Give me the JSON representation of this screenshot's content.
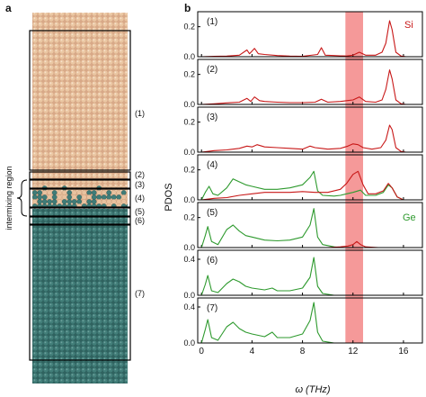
{
  "panel_a": {
    "letter": "a",
    "side_label": "intermixing region",
    "region_labels": [
      "(1)",
      "(2)",
      "(3)",
      "(4)",
      "(5)",
      "(6)",
      "(7)"
    ]
  },
  "panel_b": {
    "letter": "b",
    "series_label_si": "Si",
    "series_label_ge": "Ge"
  },
  "colors": {
    "si": "#c81818",
    "ge": "#2e9a2e",
    "highlight": "#f28080",
    "si_atoms": "#e8c29f",
    "ge_atoms": "#3f7c78"
  },
  "chart_data": {
    "type": "line",
    "xlabel": "ω (THz)",
    "ylabel": "PDOS",
    "xlim": [
      -0.3,
      17.5
    ],
    "x_ticks": [
      0,
      4,
      8,
      12,
      16
    ],
    "x_tick_labels": [
      "0",
      "4",
      "8",
      "12",
      "16"
    ],
    "highlight_band": [
      11.4,
      12.8
    ],
    "panels": [
      {
        "label": "(1)",
        "ylim": [
          0,
          0.3
        ],
        "y_ticks": [
          0.0,
          0.2
        ],
        "y_tick_labels": [
          "0.0",
          "0.2"
        ],
        "series": [
          {
            "key": "si",
            "name": "Si",
            "points": [
              [
                0,
                0
              ],
              [
                1,
                0.003
              ],
              [
                2,
                0.004
              ],
              [
                3,
                0.01
              ],
              [
                3.6,
                0.045
              ],
              [
                3.8,
                0.02
              ],
              [
                4.2,
                0.055
              ],
              [
                4.5,
                0.02
              ],
              [
                5,
                0.015
              ],
              [
                6,
                0.008
              ],
              [
                7,
                0.004
              ],
              [
                8,
                0.003
              ],
              [
                9.2,
                0.015
              ],
              [
                9.5,
                0.06
              ],
              [
                9.8,
                0.01
              ],
              [
                10.5,
                0.008
              ],
              [
                11,
                0.006
              ],
              [
                11.5,
                0.005
              ],
              [
                12,
                0.01
              ],
              [
                12.5,
                0.03
              ],
              [
                13,
                0.01
              ],
              [
                13.8,
                0.01
              ],
              [
                14.3,
                0.03
              ],
              [
                14.6,
                0.09
              ],
              [
                14.9,
                0.24
              ],
              [
                15.1,
                0.18
              ],
              [
                15.4,
                0.03
              ],
              [
                15.8,
                0.005
              ],
              [
                16.2,
                0
              ],
              [
                17.5,
                0
              ]
            ]
          }
        ]
      },
      {
        "label": "(2)",
        "ylim": [
          0,
          0.3
        ],
        "y_ticks": [
          0.0,
          0.2
        ],
        "y_tick_labels": [
          "0.0",
          "0.2"
        ],
        "series": [
          {
            "key": "si",
            "name": "Si",
            "points": [
              [
                0,
                0
              ],
              [
                1,
                0.004
              ],
              [
                2,
                0.01
              ],
              [
                3,
                0.015
              ],
              [
                3.6,
                0.04
              ],
              [
                3.9,
                0.02
              ],
              [
                4.2,
                0.05
              ],
              [
                4.6,
                0.025
              ],
              [
                5,
                0.02
              ],
              [
                6,
                0.015
              ],
              [
                7,
                0.012
              ],
              [
                8,
                0.012
              ],
              [
                9,
                0.015
              ],
              [
                9.5,
                0.035
              ],
              [
                10,
                0.015
              ],
              [
                11,
                0.02
              ],
              [
                11.5,
                0.025
              ],
              [
                12,
                0.03
              ],
              [
                12.5,
                0.05
              ],
              [
                13,
                0.02
              ],
              [
                13.8,
                0.015
              ],
              [
                14.3,
                0.03
              ],
              [
                14.6,
                0.1
              ],
              [
                14.9,
                0.23
              ],
              [
                15.1,
                0.17
              ],
              [
                15.4,
                0.03
              ],
              [
                15.8,
                0.005
              ],
              [
                16.2,
                0
              ],
              [
                17.5,
                0
              ]
            ]
          }
        ]
      },
      {
        "label": "(3)",
        "ylim": [
          0,
          0.3
        ],
        "y_ticks": [
          0.0,
          0.2
        ],
        "y_tick_labels": [
          "0.0",
          "0.2"
        ],
        "series": [
          {
            "key": "si",
            "name": "Si",
            "points": [
              [
                0,
                0
              ],
              [
                1,
                0.01
              ],
              [
                2,
                0.015
              ],
              [
                3,
                0.025
              ],
              [
                3.6,
                0.04
              ],
              [
                4,
                0.035
              ],
              [
                4.4,
                0.05
              ],
              [
                5,
                0.035
              ],
              [
                6,
                0.03
              ],
              [
                7,
                0.025
              ],
              [
                8,
                0.02
              ],
              [
                8.6,
                0.04
              ],
              [
                9,
                0.03
              ],
              [
                9.5,
                0.025
              ],
              [
                10,
                0.02
              ],
              [
                11,
                0.025
              ],
              [
                11.6,
                0.04
              ],
              [
                12,
                0.055
              ],
              [
                12.4,
                0.05
              ],
              [
                12.8,
                0.03
              ],
              [
                13.5,
                0.02
              ],
              [
                14.2,
                0.03
              ],
              [
                14.6,
                0.08
              ],
              [
                14.9,
                0.18
              ],
              [
                15.1,
                0.15
              ],
              [
                15.4,
                0.03
              ],
              [
                15.8,
                0.005
              ],
              [
                16.2,
                0
              ],
              [
                17.5,
                0
              ]
            ]
          }
        ]
      },
      {
        "label": "(4)",
        "ylim": [
          0,
          0.3
        ],
        "y_ticks": [
          0.0,
          0.2
        ],
        "y_tick_labels": [
          "0.0",
          "0.2"
        ],
        "series": [
          {
            "key": "ge",
            "name": "Ge",
            "points": [
              [
                0,
                0
              ],
              [
                0.3,
                0.05
              ],
              [
                0.6,
                0.09
              ],
              [
                0.9,
                0.04
              ],
              [
                1.3,
                0.03
              ],
              [
                2,
                0.08
              ],
              [
                2.5,
                0.14
              ],
              [
                3,
                0.12
              ],
              [
                3.5,
                0.1
              ],
              [
                4,
                0.09
              ],
              [
                5,
                0.07
              ],
              [
                6,
                0.07
              ],
              [
                7,
                0.08
              ],
              [
                8,
                0.1
              ],
              [
                8.6,
                0.15
              ],
              [
                8.9,
                0.19
              ],
              [
                9.2,
                0.06
              ],
              [
                9.6,
                0.03
              ],
              [
                10.5,
                0.025
              ],
              [
                11,
                0.03
              ],
              [
                11.5,
                0.04
              ],
              [
                12,
                0.05
              ],
              [
                12.6,
                0.065
              ],
              [
                13,
                0.03
              ],
              [
                13.8,
                0.03
              ],
              [
                14.4,
                0.05
              ],
              [
                14.8,
                0.1
              ],
              [
                15.1,
                0.08
              ],
              [
                15.5,
                0.02
              ],
              [
                16,
                0
              ],
              [
                17.5,
                0
              ]
            ]
          },
          {
            "key": "si",
            "name": "Si",
            "points": [
              [
                0,
                0
              ],
              [
                1,
                0.01
              ],
              [
                2,
                0.015
              ],
              [
                3,
                0.03
              ],
              [
                4,
                0.04
              ],
              [
                5,
                0.05
              ],
              [
                6,
                0.05
              ],
              [
                7,
                0.05
              ],
              [
                8,
                0.055
              ],
              [
                9,
                0.05
              ],
              [
                10,
                0.05
              ],
              [
                11,
                0.07
              ],
              [
                11.5,
                0.11
              ],
              [
                12,
                0.17
              ],
              [
                12.4,
                0.19
              ],
              [
                12.8,
                0.1
              ],
              [
                13.2,
                0.04
              ],
              [
                13.8,
                0.04
              ],
              [
                14.4,
                0.06
              ],
              [
                14.8,
                0.11
              ],
              [
                15.1,
                0.08
              ],
              [
                15.5,
                0.02
              ],
              [
                16,
                0
              ],
              [
                17.5,
                0
              ]
            ]
          }
        ]
      },
      {
        "label": "(5)",
        "ylim": [
          0,
          0.3
        ],
        "y_ticks": [
          0.0,
          0.2
        ],
        "y_tick_labels": [
          "0.0",
          "0.2"
        ],
        "series": [
          {
            "key": "ge",
            "name": "Ge",
            "points": [
              [
                0,
                0
              ],
              [
                0.3,
                0.08
              ],
              [
                0.5,
                0.14
              ],
              [
                0.8,
                0.04
              ],
              [
                1.3,
                0.02
              ],
              [
                2,
                0.12
              ],
              [
                2.5,
                0.15
              ],
              [
                3,
                0.11
              ],
              [
                3.5,
                0.08
              ],
              [
                4,
                0.07
              ],
              [
                5,
                0.05
              ],
              [
                6,
                0.045
              ],
              [
                7,
                0.05
              ],
              [
                8,
                0.07
              ],
              [
                8.6,
                0.15
              ],
              [
                8.9,
                0.26
              ],
              [
                9.2,
                0.07
              ],
              [
                9.6,
                0.02
              ],
              [
                10.5,
                0.005
              ],
              [
                11,
                0
              ],
              [
                17.5,
                0
              ]
            ]
          },
          {
            "key": "si",
            "name": "Si",
            "points": [
              [
                0,
                0
              ],
              [
                10,
                0
              ],
              [
                11,
                0.005
              ],
              [
                11.6,
                0.01
              ],
              [
                12,
                0.02
              ],
              [
                12.3,
                0.04
              ],
              [
                12.6,
                0.02
              ],
              [
                13,
                0.005
              ],
              [
                14,
                0
              ],
              [
                17.5,
                0
              ]
            ]
          }
        ]
      },
      {
        "label": "(6)",
        "ylim": [
          0,
          0.5
        ],
        "y_ticks": [
          0.0,
          0.4
        ],
        "y_tick_labels": [
          "0.0",
          "0.4"
        ],
        "series": [
          {
            "key": "ge",
            "name": "Ge",
            "points": [
              [
                0,
                0
              ],
              [
                0.3,
                0.12
              ],
              [
                0.5,
                0.22
              ],
              [
                0.8,
                0.05
              ],
              [
                1.3,
                0.03
              ],
              [
                2,
                0.13
              ],
              [
                2.5,
                0.18
              ],
              [
                3,
                0.15
              ],
              [
                3.5,
                0.1
              ],
              [
                4,
                0.08
              ],
              [
                5,
                0.06
              ],
              [
                5.6,
                0.08
              ],
              [
                6,
                0.05
              ],
              [
                7,
                0.05
              ],
              [
                8,
                0.08
              ],
              [
                8.6,
                0.2
              ],
              [
                8.9,
                0.42
              ],
              [
                9.2,
                0.1
              ],
              [
                9.6,
                0.02
              ],
              [
                10.5,
                0
              ],
              [
                17.5,
                0
              ]
            ]
          }
        ]
      },
      {
        "label": "(7)",
        "ylim": [
          0,
          0.5
        ],
        "y_ticks": [
          0.0,
          0.4
        ],
        "y_tick_labels": [
          "0.0",
          "0.4"
        ],
        "series": [
          {
            "key": "ge",
            "name": "Ge",
            "points": [
              [
                0,
                0
              ],
              [
                0.3,
                0.15
              ],
              [
                0.5,
                0.26
              ],
              [
                0.8,
                0.06
              ],
              [
                1.3,
                0.03
              ],
              [
                2,
                0.18
              ],
              [
                2.5,
                0.23
              ],
              [
                3,
                0.16
              ],
              [
                3.5,
                0.12
              ],
              [
                4,
                0.1
              ],
              [
                5,
                0.07
              ],
              [
                5.6,
                0.12
              ],
              [
                6,
                0.06
              ],
              [
                7,
                0.06
              ],
              [
                8,
                0.1
              ],
              [
                8.6,
                0.25
              ],
              [
                8.9,
                0.45
              ],
              [
                9.2,
                0.12
              ],
              [
                9.6,
                0.02
              ],
              [
                10.5,
                0
              ],
              [
                17.5,
                0
              ]
            ]
          }
        ]
      }
    ]
  }
}
